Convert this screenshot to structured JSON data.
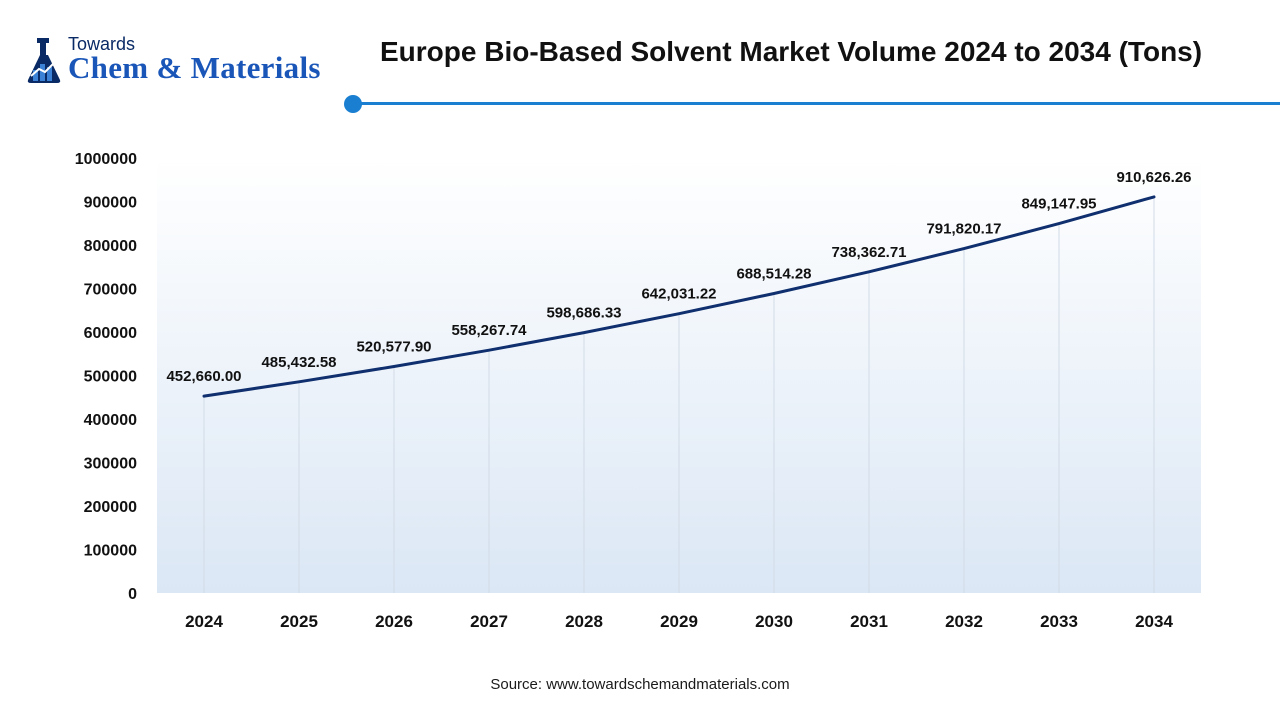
{
  "brand": {
    "top": "Towards",
    "main": "Chem & Materials"
  },
  "title": "Europe Bio-Based Solvent Market Volume 2024 to 2034 (Tons)",
  "source": "Source: www.towardschemandmaterials.com",
  "colors": {
    "line": "#0f2f6e",
    "accent": "#1a7fd0",
    "plot_bg_top": "#ffffff",
    "plot_bg_bottom": "#dbe7f5"
  },
  "chart_data": {
    "type": "line",
    "title": "Europe Bio-Based Solvent Market Volume 2024 to 2034 (Tons)",
    "categories": [
      "2024",
      "2025",
      "2026",
      "2027",
      "2028",
      "2029",
      "2030",
      "2031",
      "2032",
      "2033",
      "2034"
    ],
    "values": [
      452660.0,
      485432.58,
      520577.9,
      558267.74,
      598686.33,
      642031.22,
      688514.28,
      738362.71,
      791820.17,
      849147.95,
      910626.26
    ],
    "labels": [
      "452,660.00",
      "485,432.58",
      "520,577.90",
      "558,267.74",
      "598,686.33",
      "642,031.22",
      "688,514.28",
      "738,362.71",
      "791,820.17",
      "849,147.95",
      "910,626.26"
    ],
    "yticks": [
      "0",
      "100000",
      "200000",
      "300000",
      "400000",
      "500000",
      "600000",
      "700000",
      "800000",
      "900000",
      "1000000"
    ],
    "ylim": [
      0,
      1000000
    ],
    "xlabel": "",
    "ylabel": "",
    "grid": "vertical"
  }
}
